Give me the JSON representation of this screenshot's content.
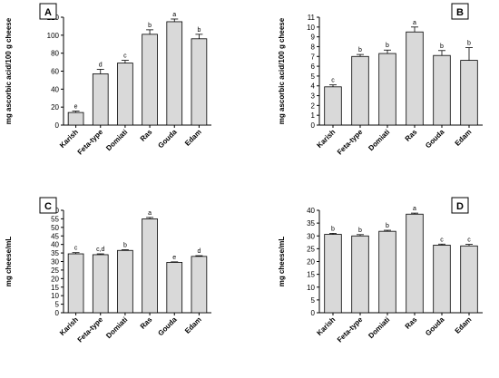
{
  "chart_data": [
    {
      "type": "bar",
      "panel": "A",
      "categories": [
        "Karish",
        "Feta-type",
        "Domiati",
        "Ras",
        "Gouda",
        "Edam"
      ],
      "values": [
        14,
        57,
        69,
        101,
        115,
        96
      ],
      "errors": [
        1.5,
        5,
        3,
        5,
        3,
        5
      ],
      "significance": [
        "e",
        "d",
        "c",
        "b",
        "a",
        "b"
      ],
      "ylabel": "mg ascorbic acid/100 g cheese",
      "ylim": [
        0,
        120
      ],
      "yticks": [
        0,
        20,
        40,
        60,
        80,
        100,
        120
      ]
    },
    {
      "type": "bar",
      "panel": "B",
      "categories": [
        "Karish",
        "Feta-type",
        "Domiati",
        "Ras",
        "Gouda",
        "Edam"
      ],
      "values": [
        3.9,
        7.0,
        7.3,
        9.5,
        7.1,
        6.6
      ],
      "errors": [
        0.2,
        0.2,
        0.35,
        0.5,
        0.5,
        1.3
      ],
      "significance": [
        "c",
        "b",
        "b",
        "a",
        "b",
        "b"
      ],
      "ylabel": "mg ascorbic acid/100 g cheese",
      "ylim": [
        0,
        11
      ],
      "yticks": [
        0,
        1,
        2,
        3,
        4,
        5,
        6,
        7,
        8,
        9,
        10,
        11
      ]
    },
    {
      "type": "bar",
      "panel": "C",
      "categories": [
        "Karish",
        "Feta-type",
        "Domiati",
        "Ras",
        "Gouda",
        "Edam"
      ],
      "values": [
        34.5,
        34,
        36.5,
        55,
        29.5,
        33
      ],
      "errors": [
        0.7,
        0.5,
        0.4,
        0.8,
        0.3,
        0.4
      ],
      "significance": [
        "c",
        "c,d",
        "b",
        "a",
        "e",
        "d"
      ],
      "ylabel": "mg cheese/mL",
      "ylim": [
        0,
        60
      ],
      "yticks": [
        0,
        5,
        10,
        15,
        20,
        25,
        30,
        35,
        40,
        45,
        50,
        55,
        60
      ]
    },
    {
      "type": "bar",
      "panel": "D",
      "categories": [
        "Karish",
        "Feta-type",
        "Domiati",
        "Ras",
        "Gouda",
        "Edam"
      ],
      "values": [
        30.6,
        30.0,
        31.8,
        38.5,
        26.4,
        26.1
      ],
      "errors": [
        0.4,
        0.5,
        0.4,
        0.4,
        0.4,
        0.6
      ],
      "significance": [
        "b",
        "b",
        "b",
        "a",
        "c",
        "c"
      ],
      "ylabel": "mg cheese/mL",
      "ylim": [
        0,
        40
      ],
      "yticks": [
        0,
        5,
        10,
        15,
        20,
        25,
        30,
        35,
        40
      ]
    }
  ]
}
